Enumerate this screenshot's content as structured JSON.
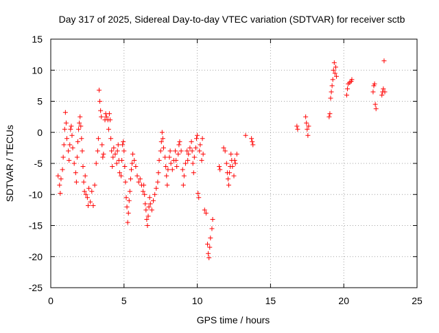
{
  "chart_data": {
    "type": "scatter",
    "title": "Day 317 of 2025, Sidereal Day-to-day VTEC variation (SDTVAR) for receiver sctb",
    "xlabel": "GPS time / hours",
    "ylabel": "SDTVAR / TECUs",
    "xlim": [
      0,
      25
    ],
    "ylim": [
      -25,
      15
    ],
    "xticks": [
      0,
      5,
      10,
      15,
      20,
      25
    ],
    "yticks": [
      -25,
      -20,
      -15,
      -10,
      -5,
      0,
      5,
      10,
      15
    ],
    "xtick_labels": [
      "0",
      "5",
      "10",
      "15",
      "20",
      "25"
    ],
    "ytick_labels": [
      "-25",
      "-20",
      "-15",
      "-10",
      "-5",
      "0",
      "5",
      "10",
      "15"
    ],
    "grid": true,
    "marker": "+",
    "color": "#ff0000",
    "series": [
      {
        "name": "sctb",
        "points": [
          [
            0.5,
            -7.0
          ],
          [
            0.6,
            -8.5
          ],
          [
            0.65,
            -9.8
          ],
          [
            0.7,
            -7.5
          ],
          [
            0.8,
            -6.0
          ],
          [
            0.85,
            -4.0
          ],
          [
            0.9,
            -2.0
          ],
          [
            0.95,
            0.5
          ],
          [
            1.0,
            3.2
          ],
          [
            1.05,
            1.5
          ],
          [
            1.1,
            -1.0
          ],
          [
            1.2,
            -3.0
          ],
          [
            1.25,
            -4.5
          ],
          [
            1.3,
            -2.0
          ],
          [
            1.35,
            0.5
          ],
          [
            1.4,
            1.0
          ],
          [
            1.45,
            -0.5
          ],
          [
            1.5,
            -2.5
          ],
          [
            1.6,
            -5.0
          ],
          [
            1.7,
            -6.5
          ],
          [
            1.75,
            -8.0
          ],
          [
            1.8,
            -4.0
          ],
          [
            1.85,
            -1.5
          ],
          [
            1.9,
            0.5
          ],
          [
            1.95,
            1.5
          ],
          [
            2.0,
            2.5
          ],
          [
            2.05,
            1.0
          ],
          [
            2.1,
            -1.0
          ],
          [
            2.15,
            -3.0
          ],
          [
            2.2,
            -5.5
          ],
          [
            2.25,
            -8.0
          ],
          [
            2.3,
            -9.5
          ],
          [
            2.35,
            -7.0
          ],
          [
            2.4,
            -10.0
          ],
          [
            2.5,
            -10.5
          ],
          [
            2.55,
            -11.8
          ],
          [
            2.6,
            -9.0
          ],
          [
            2.7,
            -11.2
          ],
          [
            2.8,
            -9.5
          ],
          [
            2.9,
            -11.8
          ],
          [
            3.0,
            -8.5
          ],
          [
            3.1,
            -5.0
          ],
          [
            3.2,
            -3.0
          ],
          [
            3.25,
            -1.0
          ],
          [
            3.3,
            6.8
          ],
          [
            3.35,
            5.0
          ],
          [
            3.4,
            3.5
          ],
          [
            3.45,
            2.5
          ],
          [
            3.5,
            -2.0
          ],
          [
            3.55,
            -4.0
          ],
          [
            3.6,
            -3.5
          ],
          [
            3.7,
            2.0
          ],
          [
            3.75,
            3.0
          ],
          [
            3.8,
            2.5
          ],
          [
            3.9,
            2.0
          ],
          [
            3.95,
            0.5
          ],
          [
            4.0,
            3.0
          ],
          [
            4.05,
            2.0
          ],
          [
            4.1,
            -1.0
          ],
          [
            4.15,
            -3.0
          ],
          [
            4.2,
            -5.5
          ],
          [
            4.25,
            -4.0
          ],
          [
            4.3,
            -2.5
          ],
          [
            4.4,
            -3.5
          ],
          [
            4.5,
            -5.0
          ],
          [
            4.55,
            -3.0
          ],
          [
            4.6,
            -2.0
          ],
          [
            4.65,
            -4.5
          ],
          [
            4.7,
            -6.5
          ],
          [
            4.8,
            -7.0
          ],
          [
            4.85,
            -4.5
          ],
          [
            4.9,
            -2.0
          ],
          [
            4.95,
            -1.5
          ],
          [
            5.0,
            -3.0
          ],
          [
            5.05,
            -5.5
          ],
          [
            5.1,
            -8.0
          ],
          [
            5.15,
            -10.5
          ],
          [
            5.2,
            -12.0
          ],
          [
            5.25,
            -14.5
          ],
          [
            5.3,
            -13.0
          ],
          [
            5.35,
            -11.0
          ],
          [
            5.4,
            -9.5
          ],
          [
            5.45,
            -7.5
          ],
          [
            5.5,
            -6.0
          ],
          [
            5.55,
            -5.0
          ],
          [
            5.6,
            -3.5
          ],
          [
            5.7,
            -4.5
          ],
          [
            5.8,
            -5.5
          ],
          [
            5.9,
            -7.0
          ],
          [
            6.0,
            -8.0
          ],
          [
            6.1,
            -7.5
          ],
          [
            6.2,
            -8.5
          ],
          [
            6.3,
            -9.5
          ],
          [
            6.35,
            -8.5
          ],
          [
            6.4,
            -10.0
          ],
          [
            6.45,
            -11.5
          ],
          [
            6.5,
            -12.5
          ],
          [
            6.55,
            -14.0
          ],
          [
            6.6,
            -15.0
          ],
          [
            6.65,
            -13.5
          ],
          [
            6.7,
            -12.0
          ],
          [
            6.75,
            -10.5
          ],
          [
            6.8,
            -11.5
          ],
          [
            6.9,
            -12.5
          ],
          [
            7.0,
            -11.0
          ],
          [
            7.1,
            -10.0
          ],
          [
            7.2,
            -9.0
          ],
          [
            7.3,
            -8.0
          ],
          [
            7.35,
            -6.5
          ],
          [
            7.4,
            -4.5
          ],
          [
            7.5,
            -3.0
          ],
          [
            7.55,
            -1.5
          ],
          [
            7.6,
            0.0
          ],
          [
            7.65,
            -1.0
          ],
          [
            7.7,
            -2.5
          ],
          [
            7.8,
            -4.0
          ],
          [
            7.85,
            -5.5
          ],
          [
            7.9,
            -7.0
          ],
          [
            7.95,
            -8.5
          ],
          [
            8.0,
            -6.0
          ],
          [
            8.1,
            -4.0
          ],
          [
            8.15,
            -3.0
          ],
          [
            8.2,
            -5.0
          ],
          [
            8.3,
            -6.0
          ],
          [
            8.4,
            -4.5
          ],
          [
            8.5,
            -3.0
          ],
          [
            8.55,
            -4.5
          ],
          [
            8.6,
            -5.5
          ],
          [
            8.7,
            -3.5
          ],
          [
            8.75,
            -2.0
          ],
          [
            8.8,
            -1.5
          ],
          [
            8.9,
            -3.0
          ],
          [
            9.0,
            -6.0
          ],
          [
            9.05,
            -8.5
          ],
          [
            9.1,
            -7.0
          ],
          [
            9.2,
            -5.0
          ],
          [
            9.3,
            -3.0
          ],
          [
            9.35,
            -4.5
          ],
          [
            9.4,
            -3.5
          ],
          [
            9.5,
            -2.5
          ],
          [
            9.6,
            -1.5
          ],
          [
            9.65,
            -3.0
          ],
          [
            9.7,
            -5.0
          ],
          [
            9.75,
            -6.5
          ],
          [
            9.8,
            -4.0
          ],
          [
            9.9,
            -2.5
          ],
          [
            9.95,
            -1.0
          ],
          [
            10.0,
            -0.5
          ],
          [
            10.05,
            -9.8
          ],
          [
            10.1,
            -10.5
          ],
          [
            10.15,
            -3.0
          ],
          [
            10.2,
            -2.0
          ],
          [
            10.3,
            -4.5
          ],
          [
            10.35,
            -1.0
          ],
          [
            10.4,
            -3.5
          ],
          [
            10.5,
            -12.5
          ],
          [
            10.6,
            -13.0
          ],
          [
            10.7,
            -18.0
          ],
          [
            10.75,
            -19.5
          ],
          [
            10.8,
            -20.2
          ],
          [
            10.85,
            -18.5
          ],
          [
            10.9,
            -17.0
          ],
          [
            11.0,
            -15.5
          ],
          [
            11.05,
            -14.0
          ],
          [
            11.5,
            -5.5
          ],
          [
            11.55,
            -6.0
          ],
          [
            11.8,
            -2.5
          ],
          [
            11.9,
            -3.0
          ],
          [
            12.0,
            -5.0
          ],
          [
            12.05,
            -6.5
          ],
          [
            12.1,
            -7.5
          ],
          [
            12.15,
            -8.5
          ],
          [
            12.2,
            -6.5
          ],
          [
            12.25,
            -5.5
          ],
          [
            12.3,
            -3.5
          ],
          [
            12.35,
            -4.5
          ],
          [
            12.4,
            -5.5
          ],
          [
            12.5,
            -7.0
          ],
          [
            12.55,
            -4.5
          ],
          [
            12.6,
            -5.0
          ],
          [
            12.7,
            -3.5
          ],
          [
            13.3,
            -0.5
          ],
          [
            13.7,
            -1.0
          ],
          [
            13.75,
            -1.5
          ],
          [
            13.8,
            -2.0
          ],
          [
            16.8,
            1.0
          ],
          [
            16.85,
            0.5
          ],
          [
            17.4,
            2.5
          ],
          [
            17.45,
            1.5
          ],
          [
            17.5,
            0.5
          ],
          [
            17.55,
            -0.5
          ],
          [
            17.6,
            1.0
          ],
          [
            19.0,
            2.5
          ],
          [
            19.05,
            3.0
          ],
          [
            19.1,
            5.5
          ],
          [
            19.15,
            6.5
          ],
          [
            19.2,
            7.5
          ],
          [
            19.25,
            8.5
          ],
          [
            19.3,
            10.0
          ],
          [
            19.35,
            11.2
          ],
          [
            19.4,
            9.5
          ],
          [
            19.45,
            10.5
          ],
          [
            19.5,
            9.0
          ],
          [
            20.2,
            6.0
          ],
          [
            20.25,
            7.0
          ],
          [
            20.3,
            7.8
          ],
          [
            20.4,
            8.0
          ],
          [
            20.5,
            8.2
          ],
          [
            20.55,
            8.5
          ],
          [
            22.0,
            6.5
          ],
          [
            22.05,
            7.5
          ],
          [
            22.1,
            7.8
          ],
          [
            22.15,
            4.5
          ],
          [
            22.2,
            3.8
          ],
          [
            22.6,
            6.0
          ],
          [
            22.65,
            6.5
          ],
          [
            22.7,
            7.0
          ],
          [
            22.75,
            11.5
          ],
          [
            22.8,
            6.5
          ]
        ]
      }
    ]
  }
}
